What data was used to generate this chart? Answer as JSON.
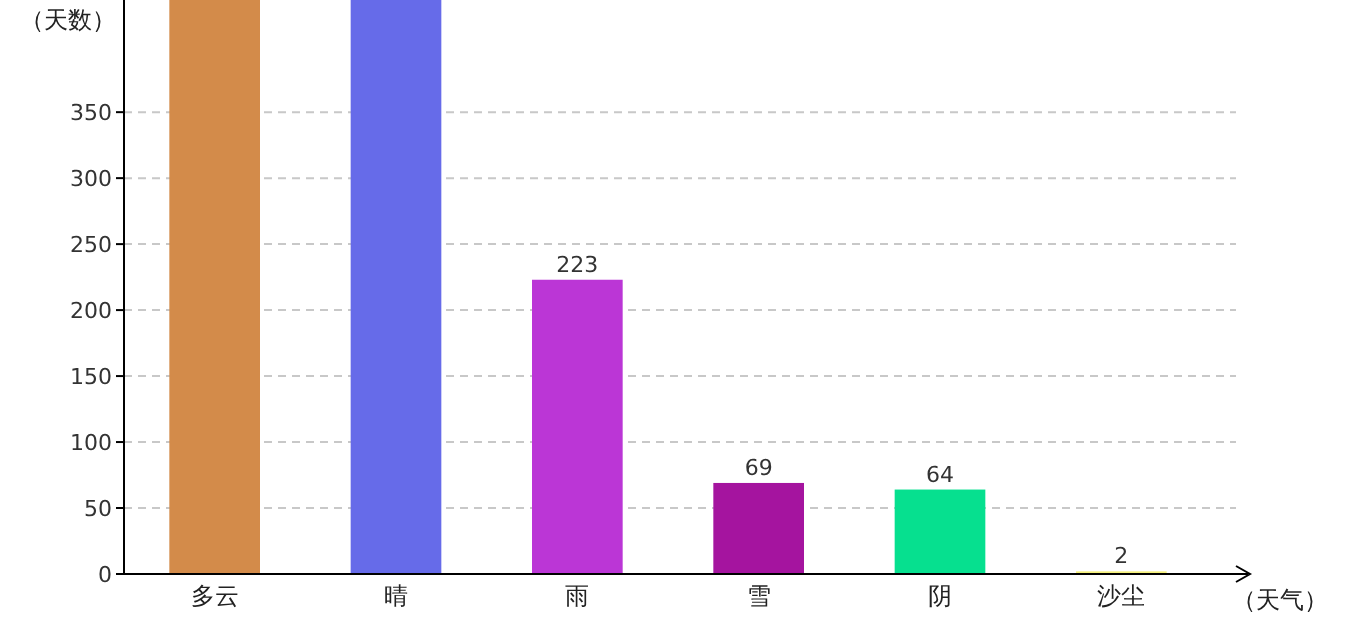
{
  "chart_data": {
    "type": "bar",
    "xlabel": "（天气）",
    "ylabel": "（天数）",
    "categories": [
      "多云",
      "晴",
      "雨",
      "雪",
      "阴",
      "沙尘"
    ],
    "values": [
      435,
      435,
      223,
      69,
      64,
      2
    ],
    "colors": [
      "#d38b4a",
      "#666be9",
      "#bb36d6",
      "#a5149f",
      "#06e08f",
      "#f5f07a"
    ],
    "value_labels": [
      null,
      null,
      "223",
      "69",
      "64",
      "2"
    ],
    "ylim": [
      0,
      435
    ],
    "yticks": [
      0,
      50,
      100,
      150,
      200,
      250,
      300,
      350
    ],
    "grid": "y"
  }
}
